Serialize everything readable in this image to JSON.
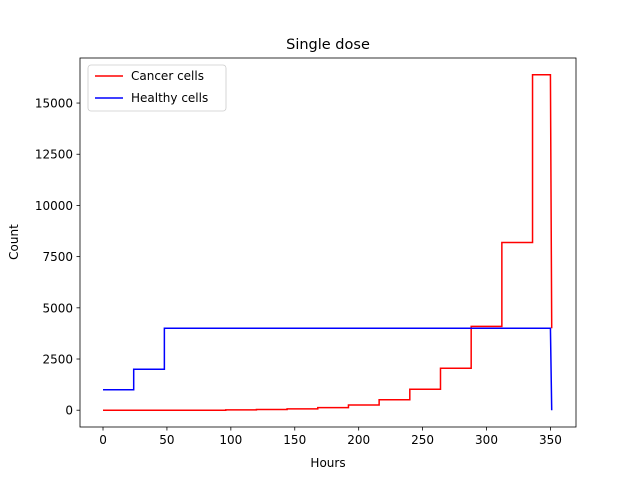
{
  "chart_data": {
    "type": "line",
    "title": "Single dose",
    "xlabel": "Hours",
    "ylabel": "Count",
    "xlim": [
      -18,
      370
    ],
    "ylim": [
      -820,
      17200
    ],
    "xticks": [
      0,
      50,
      100,
      150,
      200,
      250,
      300,
      350
    ],
    "yticks": [
      0,
      2500,
      5000,
      7500,
      10000,
      12500,
      15000
    ],
    "grid": false,
    "legend_position": "top-left",
    "series": [
      {
        "name": "Cancer cells",
        "color": "#ff0000",
        "x": [
          0,
          24,
          24,
          48,
          48,
          72,
          72,
          96,
          96,
          120,
          120,
          144,
          144,
          168,
          168,
          192,
          192,
          216,
          216,
          240,
          240,
          264,
          264,
          288,
          288,
          312,
          312,
          336,
          336,
          350,
          351
        ],
        "y": [
          0,
          0,
          0,
          0,
          0,
          0,
          0,
          0,
          16,
          16,
          32,
          32,
          64,
          64,
          128,
          128,
          256,
          256,
          512,
          512,
          1024,
          1024,
          2048,
          2048,
          4096,
          4096,
          8192,
          8192,
          16384,
          16384,
          4000
        ]
      },
      {
        "name": "Healthy cells",
        "color": "#0000ff",
        "x": [
          0,
          24,
          24,
          48,
          48,
          350,
          351
        ],
        "y": [
          1000,
          1000,
          2000,
          2000,
          4000,
          4000,
          0
        ]
      }
    ]
  }
}
